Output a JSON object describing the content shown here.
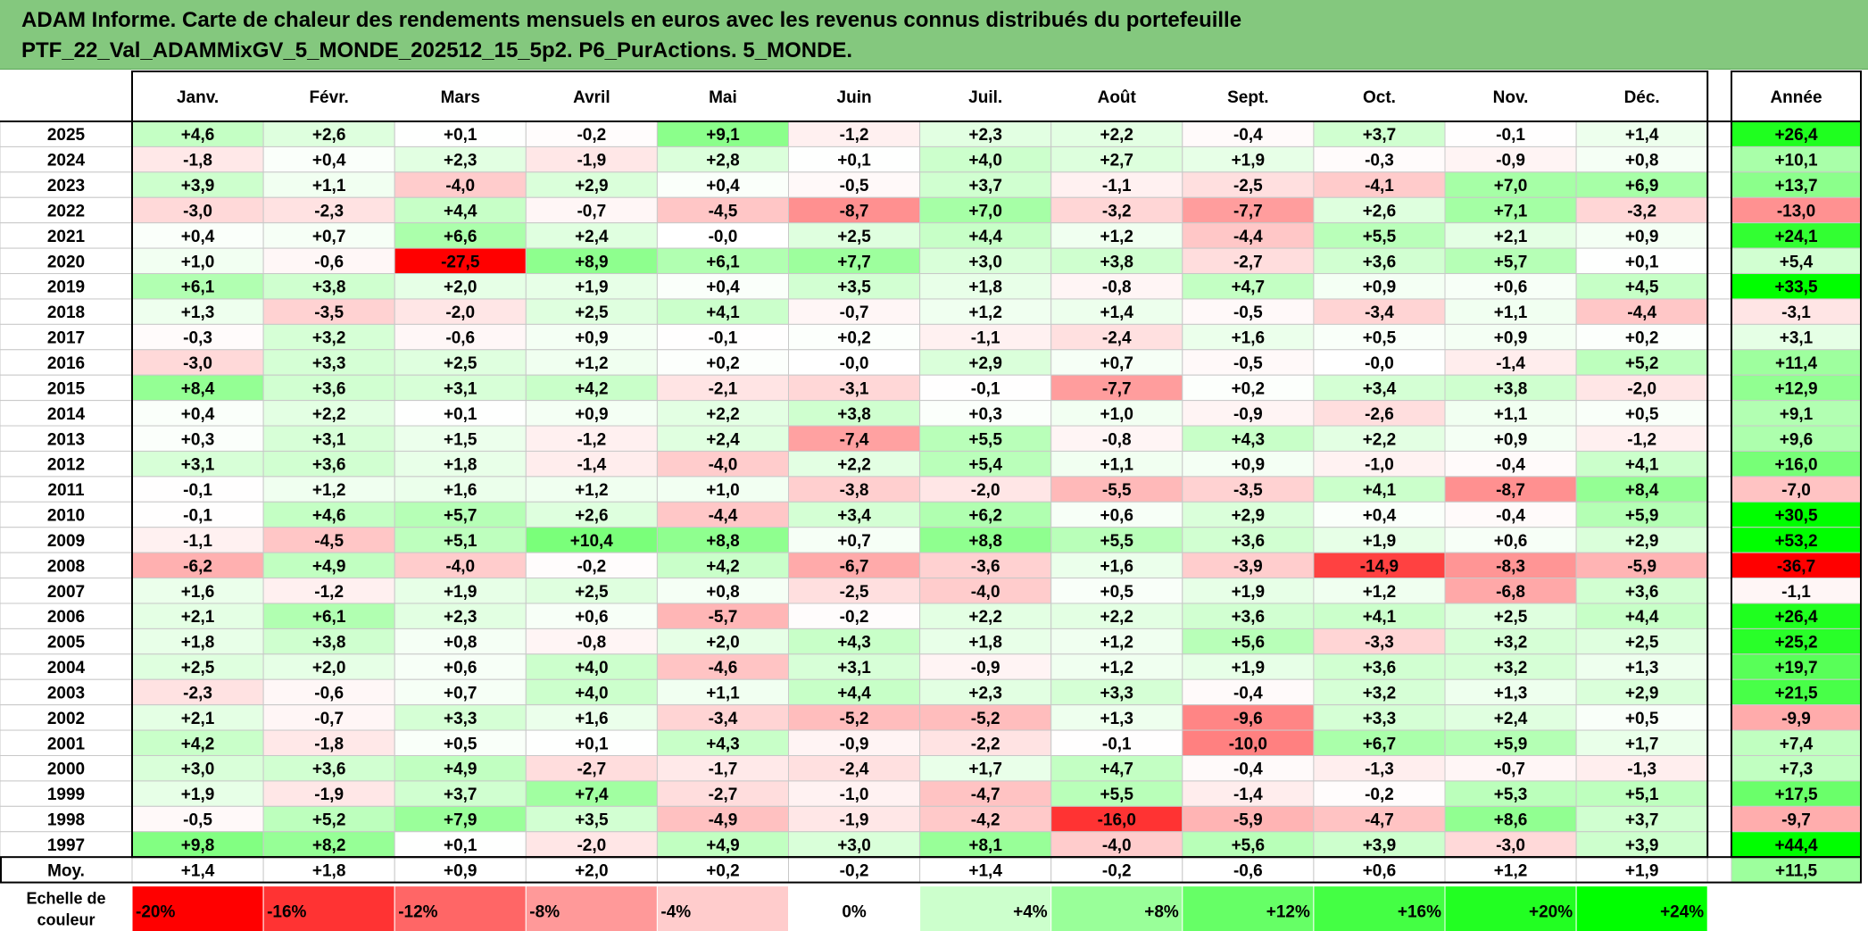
{
  "title": {
    "line1": "ADAM Informe. Carte de chaleur des rendements mensuels en euros avec les revenus connus distribués du portefeuille",
    "line2": "PTF_22_Val_ADAMMixGV_5_MONDE_202512_15_5p2. P6_PurActions. 5_MONDE."
  },
  "colors": {
    "banner": "#84c87e",
    "negative_max": "#ff0000",
    "positive_max": "#00ff00",
    "neutral": "#ffffff"
  },
  "chart_data": {
    "type": "heatmap",
    "corner_label": "",
    "months": [
      "Janv.",
      "Févr.",
      "Mars",
      "Avril",
      "Mai",
      "Juin",
      "Juil.",
      "Août",
      "Sept.",
      "Oct.",
      "Nov.",
      "Déc."
    ],
    "year_header": "Année",
    "rows": [
      {
        "year": "2025",
        "values": [
          "+4,6",
          "+2,6",
          "+0,1",
          "-0,2",
          "+9,1",
          "-1,2",
          "+2,3",
          "+2,2",
          "-0,4",
          "+3,7",
          "-0,1",
          "+1,4"
        ],
        "annual": "+26,4"
      },
      {
        "year": "2024",
        "values": [
          "-1,8",
          "+0,4",
          "+2,3",
          "-1,9",
          "+2,8",
          "+0,1",
          "+4,0",
          "+2,7",
          "+1,9",
          "-0,3",
          "-0,9",
          "+0,8"
        ],
        "annual": "+10,1"
      },
      {
        "year": "2023",
        "values": [
          "+3,9",
          "+1,1",
          "-4,0",
          "+2,9",
          "+0,4",
          "-0,5",
          "+3,7",
          "-1,1",
          "-2,5",
          "-4,1",
          "+7,0",
          "+6,9"
        ],
        "annual": "+13,7"
      },
      {
        "year": "2022",
        "values": [
          "-3,0",
          "-2,3",
          "+4,4",
          "-0,7",
          "-4,5",
          "-8,7",
          "+7,0",
          "-3,2",
          "-7,7",
          "+2,6",
          "+7,1",
          "-3,2"
        ],
        "annual": "-13,0"
      },
      {
        "year": "2021",
        "values": [
          "+0,4",
          "+0,7",
          "+6,6",
          "+2,4",
          "-0,0",
          "+2,5",
          "+4,4",
          "+1,2",
          "-4,4",
          "+5,5",
          "+2,1",
          "+0,9"
        ],
        "annual": "+24,1"
      },
      {
        "year": "2020",
        "values": [
          "+1,0",
          "-0,6",
          "-27,5",
          "+8,9",
          "+6,1",
          "+7,7",
          "+3,0",
          "+3,8",
          "-2,7",
          "+3,6",
          "+5,7",
          "+0,1"
        ],
        "annual": "+5,4"
      },
      {
        "year": "2019",
        "values": [
          "+6,1",
          "+3,8",
          "+2,0",
          "+1,9",
          "+0,4",
          "+3,5",
          "+1,8",
          "-0,8",
          "+4,7",
          "+0,9",
          "+0,6",
          "+4,5"
        ],
        "annual": "+33,5"
      },
      {
        "year": "2018",
        "values": [
          "+1,3",
          "-3,5",
          "-2,0",
          "+2,5",
          "+4,1",
          "-0,7",
          "+1,2",
          "+1,4",
          "-0,5",
          "-3,4",
          "+1,1",
          "-4,4"
        ],
        "annual": "-3,1"
      },
      {
        "year": "2017",
        "values": [
          "-0,3",
          "+3,2",
          "-0,6",
          "+0,9",
          "-0,1",
          "+0,2",
          "-1,1",
          "-2,4",
          "+1,6",
          "+0,5",
          "+0,9",
          "+0,2"
        ],
        "annual": "+3,1"
      },
      {
        "year": "2016",
        "values": [
          "-3,0",
          "+3,3",
          "+2,5",
          "+1,2",
          "+0,2",
          "-0,0",
          "+2,9",
          "+0,7",
          "-0,5",
          "-0,0",
          "-1,4",
          "+5,2"
        ],
        "annual": "+11,4"
      },
      {
        "year": "2015",
        "values": [
          "+8,4",
          "+3,6",
          "+3,1",
          "+4,2",
          "-2,1",
          "-3,1",
          "-0,1",
          "-7,7",
          "+0,2",
          "+3,4",
          "+3,8",
          "-2,0"
        ],
        "annual": "+12,9"
      },
      {
        "year": "2014",
        "values": [
          "+0,4",
          "+2,2",
          "+0,1",
          "+0,9",
          "+2,2",
          "+3,8",
          "+0,3",
          "+1,0",
          "-0,9",
          "-2,6",
          "+1,1",
          "+0,5"
        ],
        "annual": "+9,1"
      },
      {
        "year": "2013",
        "values": [
          "+0,3",
          "+3,1",
          "+1,5",
          "-1,2",
          "+2,4",
          "-7,4",
          "+5,5",
          "-0,8",
          "+4,3",
          "+2,2",
          "+0,9",
          "-1,2"
        ],
        "annual": "+9,6"
      },
      {
        "year": "2012",
        "values": [
          "+3,1",
          "+3,6",
          "+1,8",
          "-1,4",
          "-4,0",
          "+2,2",
          "+5,4",
          "+1,1",
          "+0,9",
          "-1,0",
          "-0,4",
          "+4,1"
        ],
        "annual": "+16,0"
      },
      {
        "year": "2011",
        "values": [
          "-0,1",
          "+1,2",
          "+1,6",
          "+1,2",
          "+1,0",
          "-3,8",
          "-2,0",
          "-5,5",
          "-3,5",
          "+4,1",
          "-8,7",
          "+8,4"
        ],
        "annual": "-7,0"
      },
      {
        "year": "2010",
        "values": [
          "-0,1",
          "+4,6",
          "+5,7",
          "+2,6",
          "-4,4",
          "+3,4",
          "+6,2",
          "+0,6",
          "+2,9",
          "+0,4",
          "-0,4",
          "+5,9"
        ],
        "annual": "+30,5"
      },
      {
        "year": "2009",
        "values": [
          "-1,1",
          "-4,5",
          "+5,1",
          "+10,4",
          "+8,8",
          "+0,7",
          "+8,8",
          "+5,5",
          "+3,6",
          "+1,9",
          "+0,6",
          "+2,9"
        ],
        "annual": "+53,2"
      },
      {
        "year": "2008",
        "values": [
          "-6,2",
          "+4,9",
          "-4,0",
          "-0,2",
          "+4,2",
          "-6,7",
          "-3,6",
          "+1,6",
          "-3,9",
          "-14,9",
          "-8,3",
          "-5,9"
        ],
        "annual": "-36,7"
      },
      {
        "year": "2007",
        "values": [
          "+1,6",
          "-1,2",
          "+1,9",
          "+2,5",
          "+0,8",
          "-2,5",
          "-4,0",
          "+0,5",
          "+1,9",
          "+1,2",
          "-6,8",
          "+3,6"
        ],
        "annual": "-1,1"
      },
      {
        "year": "2006",
        "values": [
          "+2,1",
          "+6,1",
          "+2,3",
          "+0,6",
          "-5,7",
          "-0,2",
          "+2,2",
          "+2,2",
          "+3,6",
          "+4,1",
          "+2,5",
          "+4,4"
        ],
        "annual": "+26,4"
      },
      {
        "year": "2005",
        "values": [
          "+1,8",
          "+3,8",
          "+0,8",
          "-0,8",
          "+2,0",
          "+4,3",
          "+1,8",
          "+1,2",
          "+5,6",
          "-3,3",
          "+3,2",
          "+2,5"
        ],
        "annual": "+25,2"
      },
      {
        "year": "2004",
        "values": [
          "+2,5",
          "+2,0",
          "+0,6",
          "+4,0",
          "-4,6",
          "+3,1",
          "-0,9",
          "+1,2",
          "+1,9",
          "+3,6",
          "+3,2",
          "+1,3"
        ],
        "annual": "+19,7"
      },
      {
        "year": "2003",
        "values": [
          "-2,3",
          "-0,6",
          "+0,7",
          "+4,0",
          "+1,1",
          "+4,4",
          "+2,3",
          "+3,3",
          "-0,4",
          "+3,2",
          "+1,3",
          "+2,9"
        ],
        "annual": "+21,5"
      },
      {
        "year": "2002",
        "values": [
          "+2,1",
          "-0,7",
          "+3,3",
          "+1,6",
          "-3,4",
          "-5,2",
          "-5,2",
          "+1,3",
          "-9,6",
          "+3,3",
          "+2,4",
          "+0,5"
        ],
        "annual": "-9,9"
      },
      {
        "year": "2001",
        "values": [
          "+4,2",
          "-1,8",
          "+0,5",
          "+0,1",
          "+4,3",
          "-0,9",
          "-2,2",
          "-0,1",
          "-10,0",
          "+6,7",
          "+5,9",
          "+1,7"
        ],
        "annual": "+7,4"
      },
      {
        "year": "2000",
        "values": [
          "+3,0",
          "+3,6",
          "+4,9",
          "-2,7",
          "-1,7",
          "-2,4",
          "+1,7",
          "+4,7",
          "-0,4",
          "-1,3",
          "-0,7",
          "-1,3"
        ],
        "annual": "+7,3"
      },
      {
        "year": "1999",
        "values": [
          "+1,9",
          "-1,9",
          "+3,7",
          "+7,4",
          "-2,7",
          "-1,0",
          "-4,7",
          "+5,5",
          "-1,4",
          "-0,2",
          "+5,3",
          "+5,1"
        ],
        "annual": "+17,5"
      },
      {
        "year": "1998",
        "values": [
          "-0,5",
          "+5,2",
          "+7,9",
          "+3,5",
          "-4,9",
          "-1,9",
          "-4,2",
          "-16,0",
          "-5,9",
          "-4,7",
          "+8,6",
          "+3,7"
        ],
        "annual": "-9,7"
      },
      {
        "year": "1997",
        "values": [
          "+9,8",
          "+8,2",
          "+0,1",
          "-2,0",
          "+4,9",
          "+3,0",
          "+8,1",
          "-4,0",
          "+5,6",
          "+3,9",
          "-3,0",
          "+3,9"
        ],
        "annual": "+44,4"
      }
    ],
    "average_row": {
      "label": "Moy.",
      "values": [
        "+1,4",
        "+1,8",
        "+0,9",
        "+2,0",
        "+0,2",
        "-0,2",
        "+1,4",
        "-0,2",
        "-0,6",
        "+0,6",
        "+1,2",
        "+1,9"
      ],
      "annual": "+11,5"
    },
    "color_scale": {
      "label_line1": "Echelle de",
      "label_line2": "couleur",
      "steps": [
        {
          "label": "-20%",
          "value": -20,
          "color": "#ff0000"
        },
        {
          "label": "-16%",
          "value": -16,
          "color": "#ff3333"
        },
        {
          "label": "-12%",
          "value": -12,
          "color": "#ff6666"
        },
        {
          "label": "-8%",
          "value": -8,
          "color": "#ff9999"
        },
        {
          "label": "-4%",
          "value": -4,
          "color": "#ffcccc"
        },
        {
          "label": "0%",
          "value": 0,
          "color": "#ffffff"
        },
        {
          "label": "+4%",
          "value": 4,
          "color": "#ccffcc"
        },
        {
          "label": "+8%",
          "value": 8,
          "color": "#99ff99"
        },
        {
          "label": "+12%",
          "value": 12,
          "color": "#66ff66"
        },
        {
          "label": "+16%",
          "value": 16,
          "color": "#44ff44"
        },
        {
          "label": "+20%",
          "value": 20,
          "color": "#22ff22"
        },
        {
          "label": "+24%",
          "value": 24,
          "color": "#00ff00"
        }
      ]
    }
  }
}
